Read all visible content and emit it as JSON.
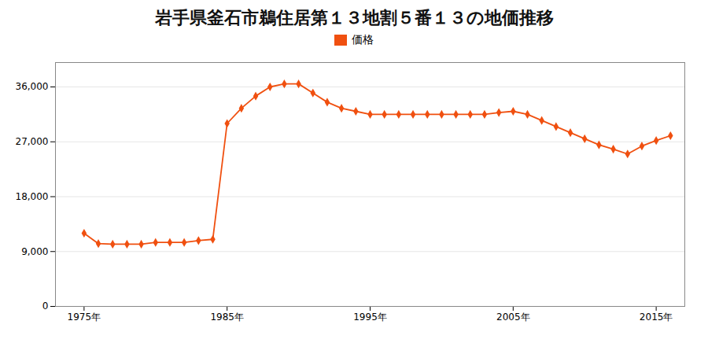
{
  "chart_data": {
    "type": "line",
    "title": "岩手県釜石市鵜住居第１３地割５番１３の地価推移",
    "x": [
      1975,
      1976,
      1977,
      1978,
      1979,
      1980,
      1981,
      1982,
      1983,
      1984,
      1985,
      1986,
      1987,
      1988,
      1989,
      1990,
      1991,
      1992,
      1993,
      1994,
      1995,
      1996,
      1997,
      1998,
      1999,
      2000,
      2001,
      2002,
      2003,
      2004,
      2005,
      2006,
      2007,
      2008,
      2009,
      2010,
      2011,
      2012,
      2013,
      2014,
      2015,
      2016
    ],
    "series": [
      {
        "name": "価格",
        "color": "#f05010",
        "marker": "diamond",
        "values": [
          12000,
          10300,
          10200,
          10200,
          10200,
          10500,
          10500,
          10500,
          10800,
          11000,
          30000,
          32500,
          34500,
          36000,
          36500,
          36500,
          35000,
          33500,
          32500,
          32000,
          31500,
          31500,
          31500,
          31500,
          31500,
          31500,
          31500,
          31500,
          31500,
          31800,
          32000,
          31500,
          30500,
          29500,
          28500,
          27500,
          26500,
          25800,
          25000,
          26300,
          27200,
          28000
        ]
      }
    ],
    "xlim": [
      1973,
      2017
    ],
    "xticks": [
      {
        "value": 1975,
        "label": "1975年"
      },
      {
        "value": 1985,
        "label": "1985年"
      },
      {
        "value": 1995,
        "label": "1995年"
      },
      {
        "value": 2005,
        "label": "2005年"
      },
      {
        "value": 2015,
        "label": "2015年"
      }
    ],
    "ylim": [
      0,
      40000
    ],
    "yticks": [
      0,
      {
        "value": 9000,
        "label": "9,000"
      },
      {
        "value": 18000,
        "label": "18,000"
      },
      {
        "value": 27000,
        "label": "27,000"
      },
      {
        "value": 36000,
        "label": "36,000"
      }
    ],
    "grid": "y",
    "legend": "top"
  }
}
